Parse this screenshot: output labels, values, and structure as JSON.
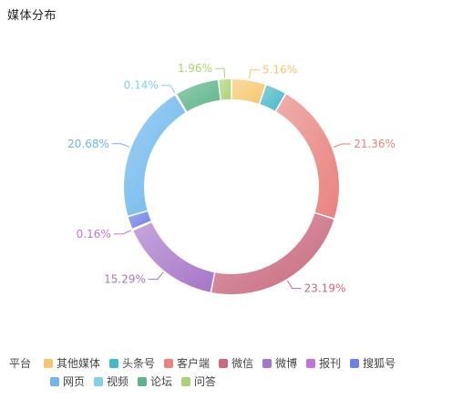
{
  "title": "媒体分布",
  "chart_data": {
    "type": "pie",
    "legend_title": "平台",
    "legend_position": "bottom",
    "slices": [
      {
        "name": "其他媒体",
        "value": 5.16,
        "label": "5.16%",
        "color": "#f6c76e"
      },
      {
        "name": "头条号",
        "value": 3.23,
        "label": "",
        "color": "#48b8c8"
      },
      {
        "name": "客户端",
        "value": 21.36,
        "label": "21.36%",
        "color": "#e8837f"
      },
      {
        "name": "微信",
        "value": 23.19,
        "label": "23.19%",
        "color": "#c9697f"
      },
      {
        "name": "微博",
        "value": 15.29,
        "label": "15.29%",
        "color": "#a676c8"
      },
      {
        "name": "报刊",
        "value": 0.16,
        "label": "0.16%",
        "color": "#c573dc"
      },
      {
        "name": "搜狐号",
        "value": 2.0,
        "label": "",
        "color": "#6f7fe6"
      },
      {
        "name": "网页",
        "value": 20.68,
        "label": "20.68%",
        "color": "#6cb6ec"
      },
      {
        "name": "视频",
        "value": 0.14,
        "label": "0.14%",
        "color": "#7fd2e6"
      },
      {
        "name": "论坛",
        "value": 6.6,
        "label": "",
        "color": "#5cb48a"
      },
      {
        "name": "问答",
        "value": 1.96,
        "label": "1.96%",
        "color": "#a8d474"
      }
    ]
  }
}
